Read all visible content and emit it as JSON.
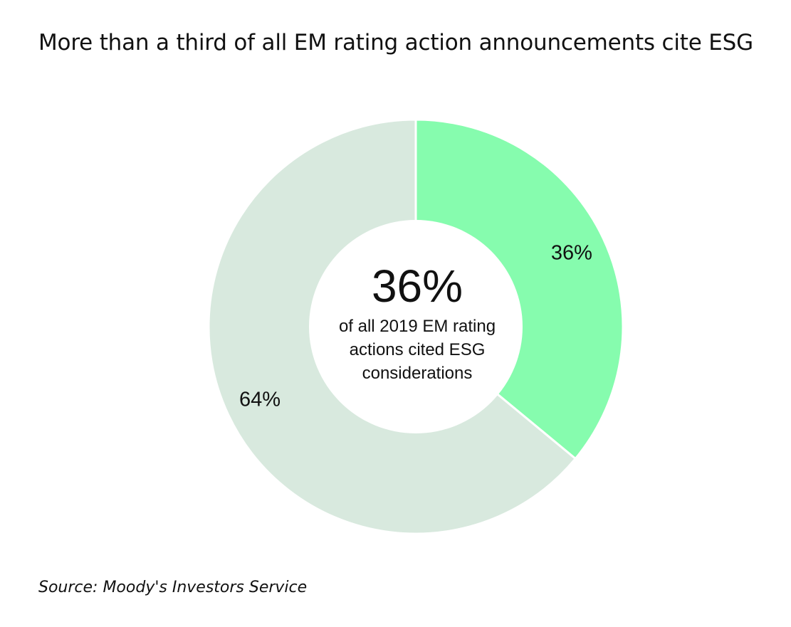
{
  "chart_data": {
    "type": "pie",
    "title": "More than a third of all EM rating action announcements cite ESG",
    "slices": [
      {
        "label": "36%",
        "value": 36,
        "color": "#86FCAE"
      },
      {
        "label": "64%",
        "value": 64,
        "color": "#D8E9DE"
      }
    ],
    "center_value": "36%",
    "center_caption": "of all 2019 EM rating actions cited ESG considerations",
    "source": "Source: Moody's Investors Service"
  }
}
